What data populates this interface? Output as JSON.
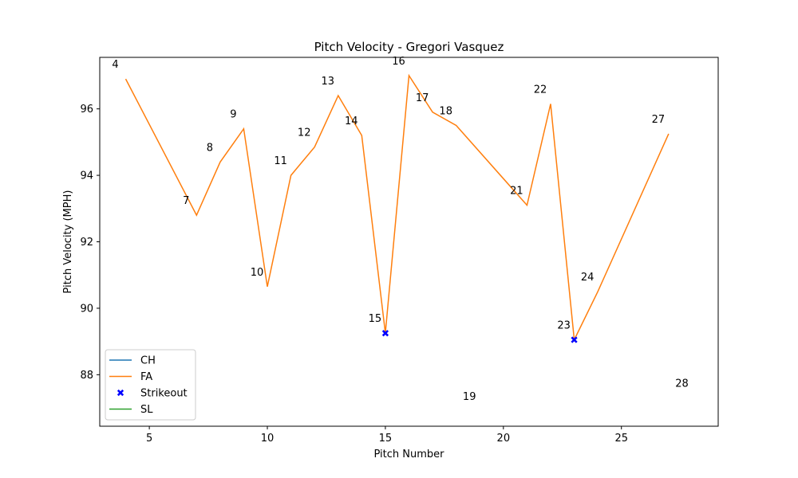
{
  "chart_data": {
    "type": "line",
    "title": "Pitch Velocity - Gregori Vasquez",
    "xlabel": "Pitch Number",
    "ylabel": "Pitch Velocity (MPH)",
    "xlim": [
      2.9,
      29.1
    ],
    "ylim": [
      86.45,
      97.55
    ],
    "xticks": [
      5,
      10,
      15,
      20,
      25
    ],
    "yticks": [
      88,
      90,
      92,
      94,
      96
    ],
    "grid": false,
    "legend_position": "lower-left",
    "series": [
      {
        "name": "CH",
        "color": "#1f77b4",
        "x": [],
        "y": []
      },
      {
        "name": "FA",
        "color": "#ff7f0e",
        "x": [
          4,
          7,
          8,
          9,
          10,
          11,
          12,
          13,
          14,
          15,
          16,
          17,
          18,
          21,
          22,
          23,
          24,
          27
        ],
        "y": [
          96.9,
          92.8,
          94.4,
          95.4,
          90.65,
          94.0,
          94.85,
          96.4,
          95.2,
          89.25,
          97.0,
          95.9,
          95.5,
          93.1,
          96.15,
          89.05,
          90.5,
          95.25
        ]
      },
      {
        "name": "SL",
        "color": "#2ca02c",
        "x": [],
        "y": []
      }
    ],
    "strikeouts": {
      "name": "Strikeout",
      "color": "#0000ff",
      "x": [
        15,
        23
      ],
      "y": [
        89.25,
        89.05
      ]
    },
    "annotations": [
      {
        "text": "4",
        "x": 4,
        "y": 96.9
      },
      {
        "text": "7",
        "x": 7,
        "y": 92.8
      },
      {
        "text": "8",
        "x": 8,
        "y": 94.4
      },
      {
        "text": "9",
        "x": 9,
        "y": 95.4
      },
      {
        "text": "10",
        "x": 10,
        "y": 90.65
      },
      {
        "text": "11",
        "x": 11,
        "y": 94.0
      },
      {
        "text": "12",
        "x": 12,
        "y": 94.85
      },
      {
        "text": "13",
        "x": 13,
        "y": 96.4
      },
      {
        "text": "14",
        "x": 14,
        "y": 95.2
      },
      {
        "text": "15",
        "x": 15,
        "y": 89.25
      },
      {
        "text": "16",
        "x": 16,
        "y": 97.0
      },
      {
        "text": "17",
        "x": 17,
        "y": 95.9
      },
      {
        "text": "18",
        "x": 18,
        "y": 95.5
      },
      {
        "text": "19",
        "x": 19,
        "y": 86.9
      },
      {
        "text": "21",
        "x": 21,
        "y": 93.1
      },
      {
        "text": "22",
        "x": 22,
        "y": 96.15
      },
      {
        "text": "23",
        "x": 23,
        "y": 89.05
      },
      {
        "text": "24",
        "x": 24,
        "y": 90.5
      },
      {
        "text": "27",
        "x": 27,
        "y": 95.25
      },
      {
        "text": "28",
        "x": 28,
        "y": 87.3
      }
    ]
  }
}
